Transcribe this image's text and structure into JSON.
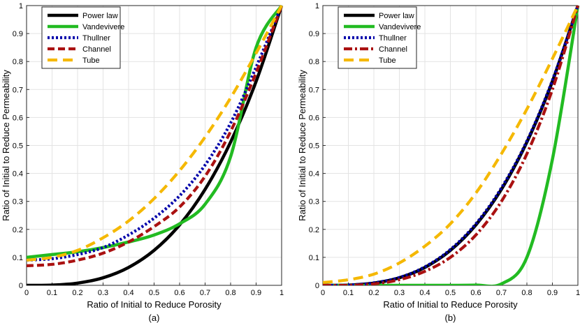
{
  "chart_data": [
    {
      "type": "line",
      "caption": "(a)",
      "xlabel": "Ratio of Initial to Reduce Porosity",
      "ylabel": "Ratio of Initial to Reduce Permeability",
      "xlim": [
        0,
        1
      ],
      "ylim": [
        0,
        1
      ],
      "xticks": [
        "0",
        "0.1",
        "0.2",
        "0.3",
        "0.4",
        "0.5",
        "0.6",
        "0.7",
        "0.8",
        "0.9",
        "1"
      ],
      "yticks": [
        "0",
        "0.1",
        "0.2",
        "0.3",
        "0.4",
        "0.5",
        "0.6",
        "0.7",
        "0.8",
        "0.9",
        "1"
      ],
      "grid": true,
      "legend_position": "top-left",
      "x": [
        0,
        0.1,
        0.2,
        0.3,
        0.4,
        0.5,
        0.6,
        0.7,
        0.8,
        0.9,
        1
      ],
      "series": [
        {
          "name": "Power law",
          "color": "#000000",
          "dash": "solid",
          "values": [
            0.0,
            0.001,
            0.008,
            0.027,
            0.064,
            0.125,
            0.216,
            0.343,
            0.512,
            0.729,
            1.0
          ]
        },
        {
          "name": "Vandevivere",
          "color": "#22bb22",
          "dash": "solid",
          "values": [
            0.1,
            0.11,
            0.12,
            0.135,
            0.155,
            0.18,
            0.22,
            0.29,
            0.46,
            0.85,
            1.0
          ]
        },
        {
          "name": "Thullner",
          "color": "#0000aa",
          "dash": "dotted",
          "values": [
            0.09,
            0.095,
            0.11,
            0.135,
            0.18,
            0.24,
            0.32,
            0.43,
            0.58,
            0.78,
            1.0
          ]
        },
        {
          "name": "Channel",
          "color": "#aa1111",
          "dash": "dashed",
          "values": [
            0.07,
            0.075,
            0.09,
            0.115,
            0.155,
            0.21,
            0.28,
            0.39,
            0.55,
            0.76,
            1.0
          ]
        },
        {
          "name": "Tube",
          "color": "#f5b800",
          "dash": "longdash",
          "values": [
            0.09,
            0.1,
            0.125,
            0.17,
            0.23,
            0.31,
            0.41,
            0.53,
            0.67,
            0.83,
            1.0
          ]
        }
      ]
    },
    {
      "type": "line",
      "caption": "(b)",
      "xlabel": "Ratio of Initial to Reduce Porosity",
      "ylabel": "Ratio of Initial to Reduce Permeability",
      "xlim": [
        0,
        1
      ],
      "ylim": [
        0,
        1
      ],
      "xticks": [
        "0",
        "0.1",
        "0.2",
        "0.3",
        "0.4",
        "0.5",
        "0.6",
        "0.7",
        "0.8",
        "0.9",
        "1"
      ],
      "yticks": [
        "0",
        "0.1",
        "0.2",
        "0.3",
        "0.4",
        "0.5",
        "0.6",
        "0.7",
        "0.8",
        "0.9",
        "1"
      ],
      "grid": true,
      "legend_position": "top-left",
      "x": [
        0,
        0.1,
        0.2,
        0.3,
        0.4,
        0.5,
        0.6,
        0.7,
        0.8,
        0.9,
        1
      ],
      "series": [
        {
          "name": "Power law",
          "color": "#000000",
          "dash": "solid",
          "values": [
            0.0,
            0.001,
            0.008,
            0.027,
            0.064,
            0.125,
            0.216,
            0.343,
            0.512,
            0.729,
            1.0
          ]
        },
        {
          "name": "Vandevivere",
          "color": "#22bb22",
          "dash": "solid",
          "values": [
            0.0,
            0.0,
            0.0,
            0.0,
            0.0,
            0.0,
            0.001,
            0.005,
            0.1,
            0.45,
            1.0
          ]
        },
        {
          "name": "Thullner",
          "color": "#0000aa",
          "dash": "dotted",
          "values": [
            0.0,
            0.001,
            0.009,
            0.028,
            0.066,
            0.128,
            0.22,
            0.348,
            0.516,
            0.733,
            1.0
          ]
        },
        {
          "name": "Channel",
          "color": "#aa1111",
          "dash": "dashdot",
          "values": [
            0.0,
            0.0,
            0.005,
            0.02,
            0.05,
            0.1,
            0.18,
            0.3,
            0.47,
            0.7,
            1.0
          ]
        },
        {
          "name": "Tube",
          "color": "#f5b800",
          "dash": "longdash",
          "values": [
            0.01,
            0.02,
            0.04,
            0.08,
            0.14,
            0.22,
            0.33,
            0.47,
            0.63,
            0.81,
            1.0
          ]
        }
      ]
    }
  ]
}
